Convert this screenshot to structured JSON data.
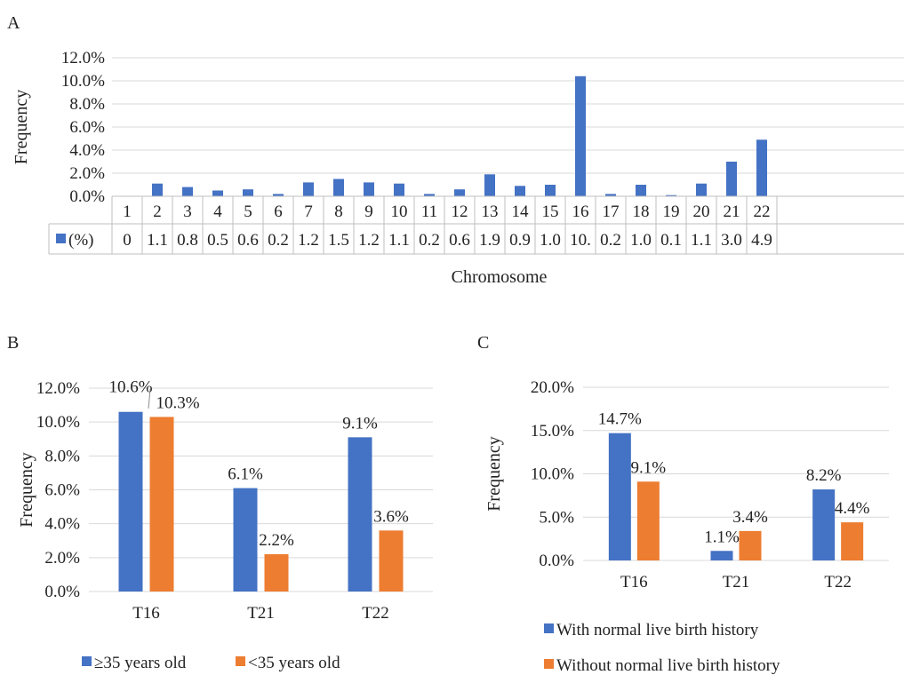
{
  "chart_data": [
    {
      "panel": "A",
      "type": "bar",
      "ylabel": "Frequency",
      "xlabel": "Chromosome",
      "ylim": [
        0,
        12
      ],
      "yticks": [
        "0.0%",
        "2.0%",
        "4.0%",
        "6.0%",
        "8.0%",
        "10.0%",
        "12.0%"
      ],
      "categories": [
        "1",
        "2",
        "3",
        "4",
        "5",
        "6",
        "7",
        "8",
        "9",
        "10",
        "11",
        "12",
        "13",
        "14",
        "15",
        "16",
        "17",
        "18",
        "19",
        "20",
        "21",
        "22"
      ],
      "series": [
        {
          "name": "(%)",
          "color": "#4472C4",
          "values": [
            0,
            1.1,
            0.8,
            0.5,
            0.6,
            0.2,
            1.2,
            1.5,
            1.2,
            1.1,
            0.2,
            0.6,
            1.9,
            0.9,
            1.0,
            10.4,
            0.2,
            1.0,
            0.1,
            1.1,
            3.0,
            4.9
          ],
          "table_labels": [
            "0",
            "1.1",
            "0.8",
            "0.5",
            "0.6",
            "0.2",
            "1.2",
            "1.5",
            "1.2",
            "1.1",
            "0.2",
            "0.6",
            "1.9",
            "0.9",
            "1.0",
            "10.",
            "0.2",
            "1.0",
            "0.1",
            "1.1",
            "3.0",
            "4.9"
          ]
        }
      ],
      "grid": true,
      "legend": "data-table"
    },
    {
      "panel": "B",
      "type": "bar",
      "ylabel": "Frequency",
      "xlabel": "",
      "ylim": [
        0,
        12
      ],
      "yticks": [
        "0.0%",
        "2.0%",
        "4.0%",
        "6.0%",
        "8.0%",
        "10.0%",
        "12.0%"
      ],
      "categories": [
        "T16",
        "T21",
        "T22"
      ],
      "series": [
        {
          "name": "≥35 years old",
          "color": "#4472C4",
          "values": [
            10.6,
            6.1,
            9.1
          ],
          "labels": [
            "10.6%",
            "6.1%",
            "9.1%"
          ]
        },
        {
          "name": "<35 years old",
          "color": "#ED7D31",
          "values": [
            10.3,
            2.2,
            3.6
          ],
          "labels": [
            "10.3%",
            "2.2%",
            "3.6%"
          ]
        }
      ],
      "grid": true,
      "legend": "bottom"
    },
    {
      "panel": "C",
      "type": "bar",
      "ylabel": "Frequency",
      "xlabel": "",
      "ylim": [
        0,
        20
      ],
      "yticks": [
        "0.0%",
        "5.0%",
        "10.0%",
        "15.0%",
        "20.0%"
      ],
      "categories": [
        "T16",
        "T21",
        "T22"
      ],
      "series": [
        {
          "name": "With normal live birth history",
          "color": "#4472C4",
          "values": [
            14.7,
            1.1,
            8.2
          ],
          "labels": [
            "14.7%",
            "1.1%",
            "8.2%"
          ]
        },
        {
          "name": "Without normal live birth history",
          "color": "#ED7D31",
          "values": [
            9.1,
            3.4,
            4.4
          ],
          "labels": [
            "9.1%",
            "3.4%",
            "4.4%"
          ]
        }
      ],
      "grid": true,
      "legend": "bottom"
    }
  ]
}
